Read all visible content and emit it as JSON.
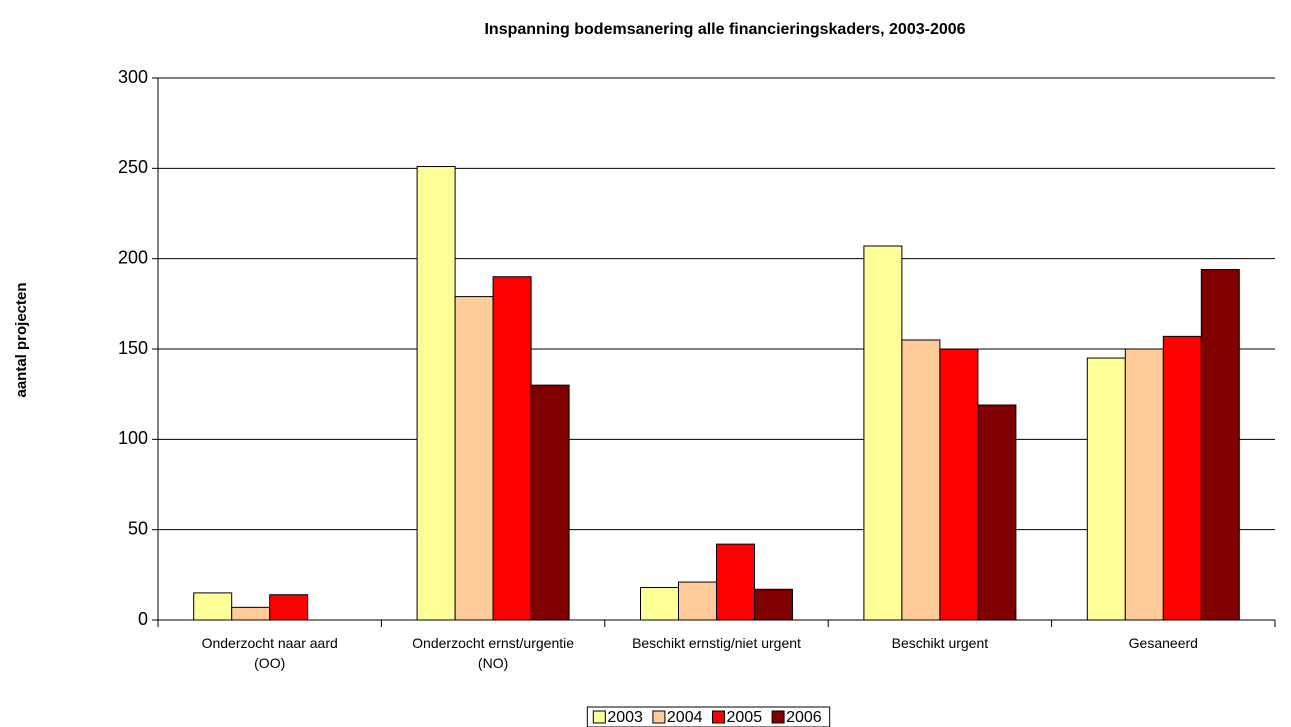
{
  "chart_data": {
    "type": "bar",
    "title": "Inspanning bodemsanering alle financieringskaders, 2003-2006",
    "y_label": "aantal projecten",
    "categories": [
      "Onderzocht naar aard (OO)",
      "Onderzocht ernst/urgentie (NO)",
      "Beschikt ernstig/niet urgent",
      "Beschikt urgent",
      "Gesaneerd"
    ],
    "series": [
      {
        "name": "2003",
        "color": "#ffff99",
        "values": [
          15,
          251,
          18,
          207,
          145
        ]
      },
      {
        "name": "2004",
        "color": "#ffcc99",
        "values": [
          7,
          179,
          21,
          155,
          150
        ]
      },
      {
        "name": "2005",
        "color": "#ff0000",
        "values": [
          14,
          190,
          42,
          150,
          157
        ]
      },
      {
        "name": "2006",
        "color": "#800000",
        "values": [
          0,
          130,
          17,
          119,
          194
        ]
      }
    ],
    "ylim": [
      0,
      300
    ],
    "yticks": [
      0,
      50,
      100,
      150,
      200,
      250,
      300
    ],
    "grid": true,
    "legend": "bottom"
  }
}
